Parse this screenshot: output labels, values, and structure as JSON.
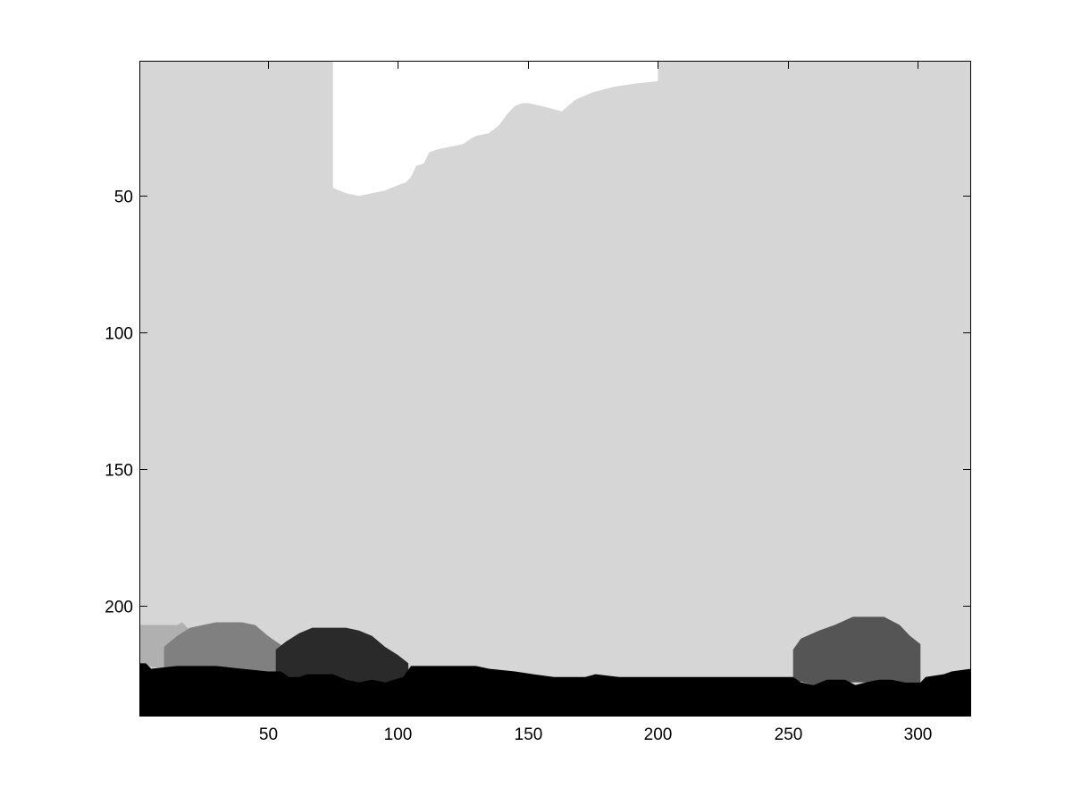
{
  "chart_data": {
    "type": "heatmap",
    "title": "",
    "xlabel": "",
    "ylabel": "",
    "xlim": [
      0.5,
      320.5
    ],
    "ylim": [
      0.5,
      240.5
    ],
    "y_direction": "reverse",
    "grid": false,
    "colormap": "gray",
    "xticks": [
      50,
      100,
      150,
      200,
      250,
      300
    ],
    "xtick_labels": [
      "50",
      "100",
      "150",
      "200",
      "250",
      "300"
    ],
    "yticks": [
      50,
      100,
      150,
      200
    ],
    "ytick_labels": [
      "50",
      "100",
      "150",
      "200"
    ],
    "colors": {
      "background_region": "#d6d6d6",
      "sky_region": "#ffffff",
      "ground_region": "#000000",
      "object_left_light": "#b0b0b0",
      "object_left_mid": "#808080",
      "object_dark": "#2a2a2a",
      "object_right": "#555555"
    },
    "regions": [
      {
        "name": "background",
        "color_key": "background_region",
        "outline": [
          [
            1,
            1
          ],
          [
            320,
            1
          ],
          [
            320,
            240
          ],
          [
            1,
            240
          ]
        ]
      },
      {
        "name": "sky",
        "color_key": "sky_region",
        "outline": [
          [
            75,
            1
          ],
          [
            200,
            1
          ],
          [
            200,
            8
          ],
          [
            190,
            9
          ],
          [
            183,
            10
          ],
          [
            175,
            12
          ],
          [
            170,
            14
          ],
          [
            168,
            15
          ],
          [
            163,
            19
          ],
          [
            155,
            17
          ],
          [
            150,
            16
          ],
          [
            148,
            16
          ],
          [
            145,
            17
          ],
          [
            142,
            20
          ],
          [
            139,
            24
          ],
          [
            135,
            27
          ],
          [
            130,
            28
          ],
          [
            128,
            29
          ],
          [
            125,
            31
          ],
          [
            120,
            32
          ],
          [
            115,
            33
          ],
          [
            112,
            34
          ],
          [
            110,
            38
          ],
          [
            107,
            39
          ],
          [
            105,
            43
          ],
          [
            103,
            45
          ],
          [
            100,
            46
          ],
          [
            95,
            48
          ],
          [
            90,
            49
          ],
          [
            85,
            50
          ],
          [
            80,
            49
          ],
          [
            75,
            47
          ]
        ]
      },
      {
        "name": "object-left-light",
        "color_key": "object_left_light",
        "outline": [
          [
            1,
            207
          ],
          [
            15,
            207
          ],
          [
            17,
            206
          ],
          [
            20,
            209
          ],
          [
            25,
            212
          ],
          [
            25,
            224
          ],
          [
            1,
            222
          ]
        ]
      },
      {
        "name": "object-left-mid",
        "color_key": "object_left_mid",
        "outline": [
          [
            10,
            215
          ],
          [
            15,
            211
          ],
          [
            20,
            208
          ],
          [
            25,
            207
          ],
          [
            30,
            206
          ],
          [
            40,
            206
          ],
          [
            45,
            207
          ],
          [
            50,
            211
          ],
          [
            56,
            215
          ],
          [
            56,
            225
          ],
          [
            10,
            225
          ]
        ]
      },
      {
        "name": "object-dark",
        "color_key": "object_dark",
        "outline": [
          [
            53,
            216
          ],
          [
            57,
            213
          ],
          [
            62,
            210
          ],
          [
            67,
            208
          ],
          [
            80,
            208
          ],
          [
            85,
            209
          ],
          [
            90,
            211
          ],
          [
            95,
            215
          ],
          [
            100,
            218
          ],
          [
            104,
            221
          ],
          [
            104,
            226
          ],
          [
            95,
            228
          ],
          [
            80,
            229
          ],
          [
            68,
            229
          ],
          [
            53,
            227
          ]
        ]
      },
      {
        "name": "object-right",
        "color_key": "object_right",
        "outline": [
          [
            252,
            216
          ],
          [
            255,
            212
          ],
          [
            262,
            209
          ],
          [
            268,
            207
          ],
          [
            275,
            204
          ],
          [
            287,
            204
          ],
          [
            293,
            207
          ],
          [
            297,
            211
          ],
          [
            301,
            214
          ],
          [
            301,
            228
          ],
          [
            295,
            228
          ],
          [
            290,
            227
          ],
          [
            280,
            228
          ],
          [
            270,
            228
          ],
          [
            260,
            229
          ],
          [
            252,
            227
          ]
        ]
      },
      {
        "name": "ground",
        "color_key": "ground_region",
        "outline": [
          [
            1,
            221
          ],
          [
            3,
            221
          ],
          [
            5,
            223
          ],
          [
            15,
            222
          ],
          [
            30,
            222
          ],
          [
            40,
            223
          ],
          [
            50,
            224
          ],
          [
            55,
            224
          ],
          [
            58,
            226
          ],
          [
            62,
            226
          ],
          [
            65,
            225
          ],
          [
            75,
            225
          ],
          [
            80,
            227
          ],
          [
            85,
            228
          ],
          [
            90,
            227
          ],
          [
            95,
            228
          ],
          [
            102,
            226
          ],
          [
            105,
            222
          ],
          [
            130,
            222
          ],
          [
            135,
            223
          ],
          [
            145,
            224
          ],
          [
            152,
            225
          ],
          [
            160,
            226
          ],
          [
            172,
            226
          ],
          [
            176,
            225
          ],
          [
            185,
            226
          ],
          [
            240,
            226
          ],
          [
            252,
            226
          ],
          [
            255,
            228
          ],
          [
            260,
            229
          ],
          [
            265,
            227
          ],
          [
            272,
            227
          ],
          [
            276,
            229
          ],
          [
            280,
            228
          ],
          [
            285,
            227
          ],
          [
            290,
            227
          ],
          [
            295,
            228
          ],
          [
            301,
            228
          ],
          [
            303,
            226
          ],
          [
            310,
            225
          ],
          [
            313,
            224
          ],
          [
            320,
            223
          ],
          [
            320,
            240
          ],
          [
            1,
            240
          ]
        ]
      }
    ]
  }
}
